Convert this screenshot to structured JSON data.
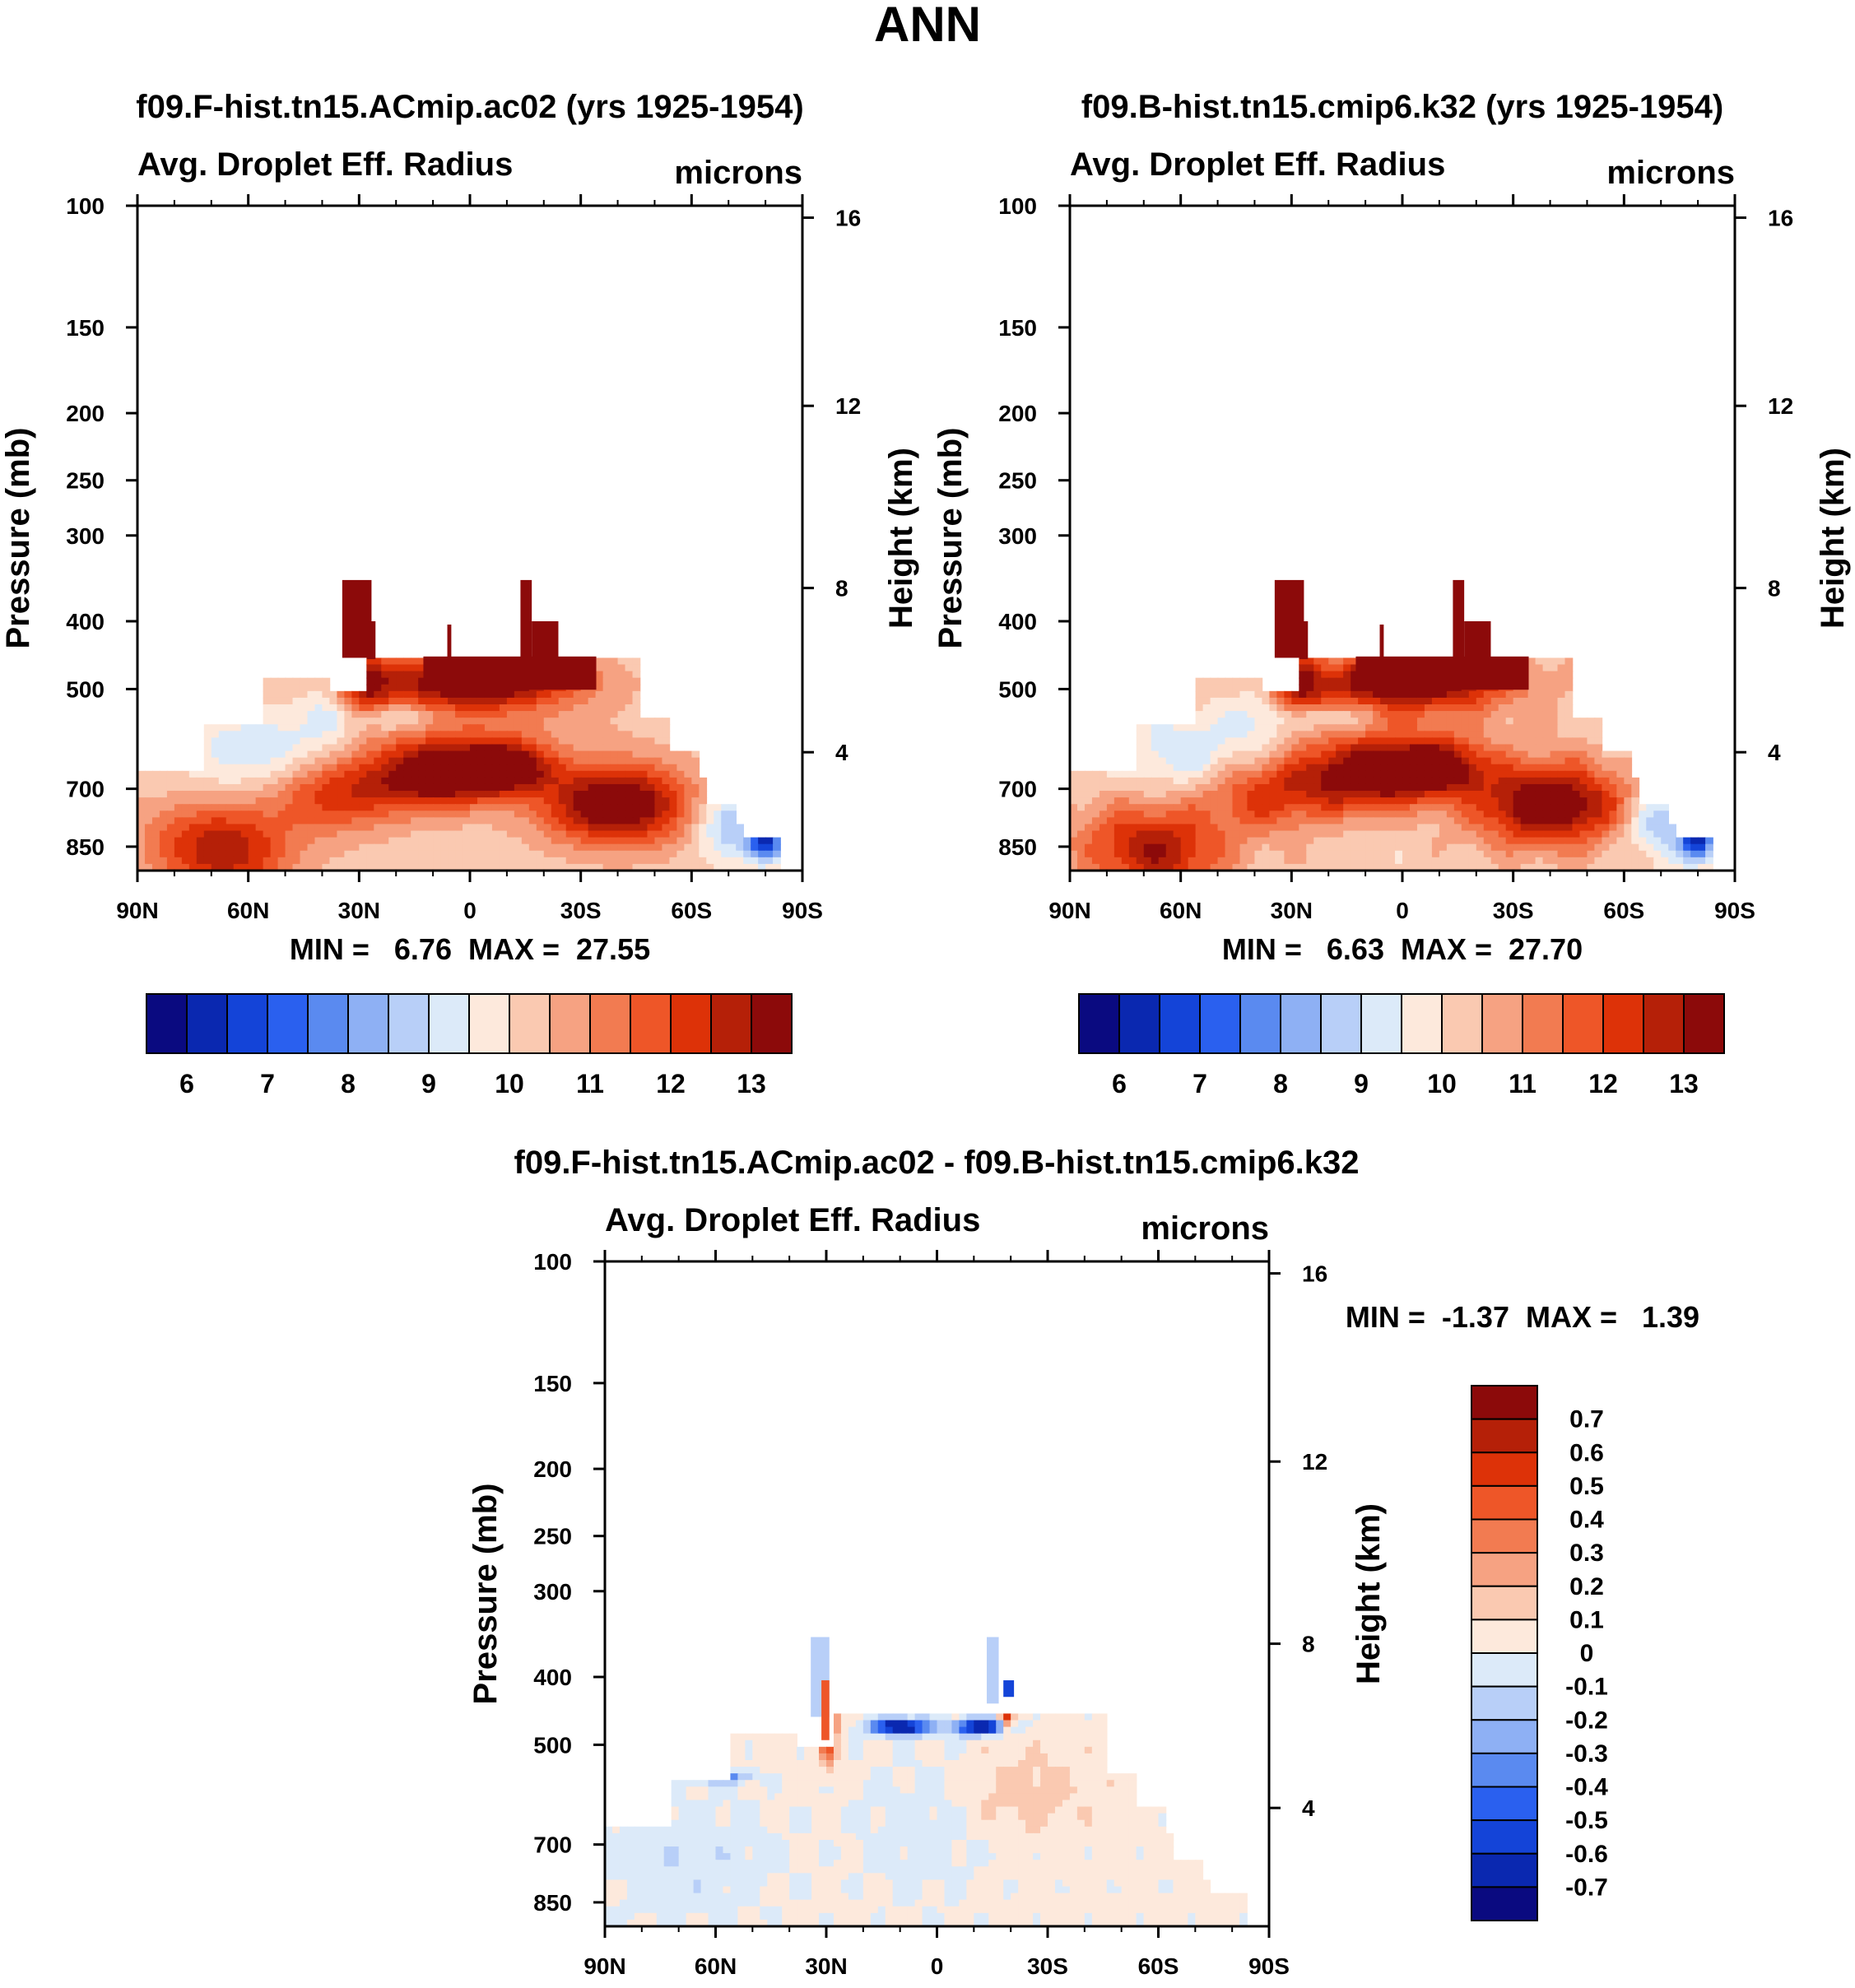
{
  "page_title": "ANN",
  "chart_data": [
    {
      "type": "heatmap",
      "title": "f09.F-hist.tn15.ACmip.ac02 (yrs 1925-1954)",
      "left_label": "Avg. Droplet Eff. Radius",
      "right_label": "microns",
      "ylabel": "Pressure (mb)",
      "ylabel_right": "Height (km)",
      "x_ticks": [
        "90N",
        "60N",
        "30N",
        "0",
        "30S",
        "60S",
        "90S"
      ],
      "y_ticks": [
        "100",
        "150",
        "200",
        "250",
        "300",
        "400",
        "500",
        "700",
        "850"
      ],
      "y_ticks_right": [
        "16",
        "12",
        "8",
        "4"
      ],
      "stats": "MIN =   6.76  MAX =  27.55",
      "colorbar_labels": [
        "6",
        "7",
        "8",
        "9",
        "10",
        "11",
        "12",
        "13"
      ],
      "colorbar_levels": [
        5.5,
        6,
        6.5,
        7,
        7.5,
        8,
        8.5,
        9,
        9.5,
        10,
        10.5,
        11,
        11.5,
        12,
        12.5,
        13
      ],
      "min": 6.76,
      "max": 27.55
    },
    {
      "type": "heatmap",
      "title": "f09.B-hist.tn15.cmip6.k32 (yrs 1925-1954)",
      "left_label": "Avg. Droplet Eff. Radius",
      "right_label": "microns",
      "ylabel": "Pressure (mb)",
      "ylabel_right": "Height (km)",
      "x_ticks": [
        "90N",
        "60N",
        "30N",
        "0",
        "30S",
        "60S",
        "90S"
      ],
      "y_ticks": [
        "100",
        "150",
        "200",
        "250",
        "300",
        "400",
        "500",
        "700",
        "850"
      ],
      "y_ticks_right": [
        "16",
        "12",
        "8",
        "4"
      ],
      "stats": "MIN =   6.63  MAX =  27.70",
      "colorbar_labels": [
        "6",
        "7",
        "8",
        "9",
        "10",
        "11",
        "12",
        "13"
      ],
      "colorbar_levels": [
        5.5,
        6,
        6.5,
        7,
        7.5,
        8,
        8.5,
        9,
        9.5,
        10,
        10.5,
        11,
        11.5,
        12,
        12.5,
        13
      ],
      "min": 6.63,
      "max": 27.7
    },
    {
      "type": "heatmap",
      "title": "f09.F-hist.tn15.ACmip.ac02 - f09.B-hist.tn15.cmip6.k32",
      "left_label": "Avg. Droplet Eff. Radius",
      "right_label": "microns",
      "ylabel": "Pressure (mb)",
      "ylabel_right": "Height (km)",
      "x_ticks": [
        "90N",
        "60N",
        "30N",
        "0",
        "30S",
        "60S",
        "90S"
      ],
      "y_ticks": [
        "100",
        "150",
        "200",
        "250",
        "300",
        "400",
        "500",
        "700",
        "850"
      ],
      "y_ticks_right": [
        "16",
        "12",
        "8",
        "4"
      ],
      "stats": "MIN =  -1.37  MAX =   1.39",
      "colorbar_labels": [
        "0.7",
        "0.6",
        "0.5",
        "0.4",
        "0.3",
        "0.2",
        "0.1",
        "0",
        "-0.1",
        "-0.2",
        "-0.3",
        "-0.4",
        "-0.5",
        "-0.6",
        "-0.7"
      ],
      "colorbar_levels": [
        -0.7,
        -0.6,
        -0.5,
        -0.4,
        -0.3,
        -0.2,
        -0.1,
        0,
        0.1,
        0.2,
        0.3,
        0.4,
        0.5,
        0.6,
        0.7
      ],
      "min": -1.37,
      "max": 1.39
    }
  ],
  "colors": {
    "scale": [
      "#0a0a80",
      "#0a28b0",
      "#1444d8",
      "#2a60ef",
      "#5a8af0",
      "#8eb0f4",
      "#b8cff8",
      "#dceaf9",
      "#fde9dc",
      "#fac9b1",
      "#f6a282",
      "#f27b51",
      "#ee5628",
      "#dd3208",
      "#b52008",
      "#8c0a0a"
    ]
  }
}
